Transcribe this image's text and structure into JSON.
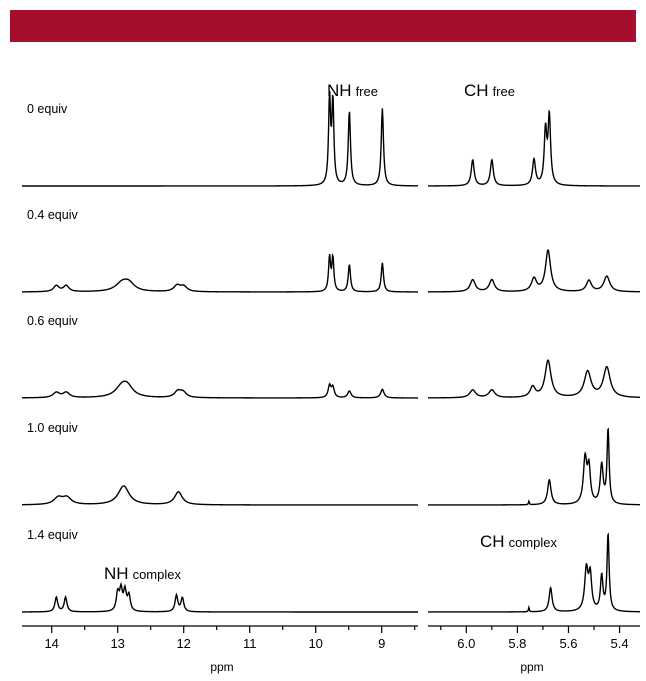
{
  "colors": {
    "banner": "#a50f2d",
    "trace": "#000000"
  },
  "chart_data": {
    "type": "line",
    "title": "",
    "xlabel": "ppm",
    "ylabel": "",
    "grid": false,
    "panels": [
      {
        "id": "left",
        "xlim": [
          14.45,
          8.45
        ],
        "xticks": [
          14,
          13,
          12,
          11,
          10,
          9
        ],
        "xtick_labels": [
          "14",
          "13",
          "12",
          "11",
          "10",
          "9"
        ]
      },
      {
        "id": "right",
        "xlim": [
          6.15,
          5.32
        ],
        "xticks": [
          6.0,
          5.8,
          5.6,
          5.4
        ],
        "xtick_labels": [
          "6.0",
          "5.8",
          "5.6",
          "5.4"
        ]
      }
    ],
    "annotations": [
      {
        "main": "NH",
        "sub": "free"
      },
      {
        "main": "CH",
        "sub": "free"
      },
      {
        "main": "NH",
        "sub": "complex"
      },
      {
        "main": "CH",
        "sub": "complex"
      }
    ],
    "series": [
      {
        "name": "0 equiv",
        "left_peaks": [
          [
            9.79,
            1.0,
            0.018
          ],
          [
            9.74,
            0.97,
            0.018
          ],
          [
            9.49,
            0.87,
            0.02
          ],
          [
            8.99,
            0.9,
            0.02
          ]
        ],
        "right_peaks": [
          [
            5.975,
            0.3,
            0.007
          ],
          [
            5.9,
            0.3,
            0.007
          ],
          [
            5.735,
            0.3,
            0.007
          ],
          [
            5.69,
            0.62,
            0.006
          ],
          [
            5.675,
            0.78,
            0.006
          ]
        ]
      },
      {
        "name": "0.4 equiv",
        "left_peaks": [
          [
            13.93,
            0.07,
            0.05
          ],
          [
            13.78,
            0.07,
            0.05
          ],
          [
            12.93,
            0.1,
            0.12
          ],
          [
            12.83,
            0.08,
            0.1
          ],
          [
            12.1,
            0.07,
            0.06
          ],
          [
            12.0,
            0.06,
            0.06
          ],
          [
            9.79,
            0.4,
            0.018
          ],
          [
            9.74,
            0.39,
            0.018
          ],
          [
            9.49,
            0.32,
            0.02
          ],
          [
            8.99,
            0.34,
            0.02
          ]
        ],
        "right_peaks": [
          [
            5.975,
            0.14,
            0.012
          ],
          [
            5.9,
            0.14,
            0.012
          ],
          [
            5.735,
            0.15,
            0.012
          ],
          [
            5.68,
            0.48,
            0.012
          ],
          [
            5.52,
            0.13,
            0.012
          ],
          [
            5.45,
            0.18,
            0.014
          ]
        ]
      },
      {
        "name": "0.6 equiv",
        "left_peaks": [
          [
            13.93,
            0.06,
            0.06
          ],
          [
            13.78,
            0.06,
            0.06
          ],
          [
            12.93,
            0.13,
            0.12
          ],
          [
            12.85,
            0.09,
            0.1
          ],
          [
            12.09,
            0.07,
            0.06
          ],
          [
            12.01,
            0.06,
            0.06
          ],
          [
            9.79,
            0.14,
            0.025
          ],
          [
            9.74,
            0.12,
            0.025
          ],
          [
            9.49,
            0.08,
            0.03
          ],
          [
            8.99,
            0.1,
            0.03
          ]
        ],
        "right_peaks": [
          [
            5.975,
            0.09,
            0.014
          ],
          [
            5.9,
            0.09,
            0.014
          ],
          [
            5.74,
            0.12,
            0.012
          ],
          [
            5.68,
            0.43,
            0.014
          ],
          [
            5.525,
            0.3,
            0.016
          ],
          [
            5.45,
            0.35,
            0.016
          ]
        ]
      },
      {
        "name": "1.0 equiv",
        "left_peaks": [
          [
            13.9,
            0.08,
            0.08
          ],
          [
            13.77,
            0.08,
            0.08
          ],
          [
            12.91,
            0.22,
            0.1
          ],
          [
            12.08,
            0.15,
            0.07
          ]
        ],
        "right_peaks": [
          [
            5.755,
            0.04,
            0.002
          ],
          [
            5.675,
            0.29,
            0.008
          ],
          [
            5.535,
            0.52,
            0.008
          ],
          [
            5.52,
            0.4,
            0.007
          ],
          [
            5.47,
            0.45,
            0.007
          ],
          [
            5.445,
            0.85,
            0.005
          ]
        ]
      },
      {
        "name": "1.4 equiv",
        "left_peaks": [
          [
            13.93,
            0.17,
            0.025
          ],
          [
            13.79,
            0.17,
            0.025
          ],
          [
            13.0,
            0.21,
            0.025
          ],
          [
            12.95,
            0.24,
            0.025
          ],
          [
            12.89,
            0.23,
            0.025
          ],
          [
            12.83,
            0.18,
            0.025
          ],
          [
            12.11,
            0.19,
            0.025
          ],
          [
            12.02,
            0.16,
            0.025
          ]
        ],
        "right_peaks": [
          [
            5.755,
            0.05,
            0.002
          ],
          [
            5.67,
            0.28,
            0.007
          ],
          [
            5.53,
            0.48,
            0.008
          ],
          [
            5.515,
            0.4,
            0.007
          ],
          [
            5.47,
            0.4,
            0.006
          ],
          [
            5.445,
            0.88,
            0.005
          ]
        ]
      }
    ]
  }
}
